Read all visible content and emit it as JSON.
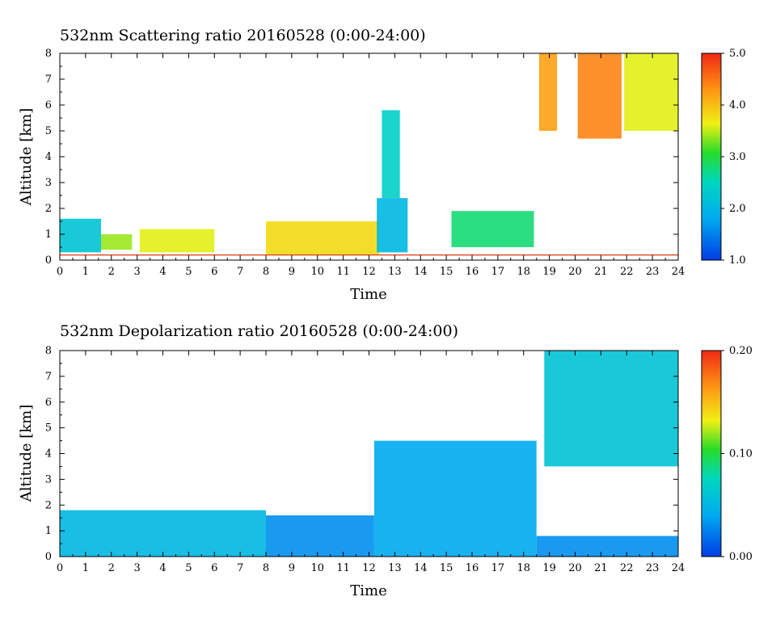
{
  "chart_data": [
    {
      "type": "heatmap",
      "title": "532nm Scattering ratio  20160528 (0:00-24:00)",
      "xlabel": "Time",
      "ylabel": "Altitude [km]",
      "xlim": [
        0,
        24
      ],
      "ylim": [
        0,
        8
      ],
      "x_ticks": [
        0,
        1,
        2,
        3,
        4,
        5,
        6,
        7,
        8,
        9,
        10,
        11,
        12,
        13,
        14,
        15,
        16,
        17,
        18,
        19,
        20,
        21,
        22,
        23,
        24
      ],
      "y_ticks": [
        0,
        1,
        2,
        3,
        4,
        5,
        6,
        7,
        8
      ],
      "colorbar": {
        "range": [
          1.0,
          5.0
        ],
        "tick_labels": [
          "1.0",
          "2.0",
          "3.0",
          "4.0",
          "5.0"
        ],
        "tick_values": [
          1.0,
          2.0,
          3.0,
          4.0,
          5.0
        ]
      },
      "reference_line_altitude": 0.2,
      "reference_line_color": "#e0502a",
      "features": [
        {
          "t0": 0.0,
          "t1": 1.6,
          "z0": 0.3,
          "z1": 1.6,
          "value": 2.2
        },
        {
          "t0": 1.6,
          "t1": 2.8,
          "z0": 0.4,
          "z1": 1.0,
          "value": 3.4
        },
        {
          "t0": 3.1,
          "t1": 6.0,
          "z0": 0.3,
          "z1": 1.2,
          "value": 3.6
        },
        {
          "t0": 8.0,
          "t1": 12.4,
          "z0": 0.2,
          "z1": 1.5,
          "value": 3.8
        },
        {
          "t0": 12.3,
          "t1": 13.5,
          "z0": 0.3,
          "z1": 2.4,
          "value": 2.0
        },
        {
          "t0": 12.5,
          "t1": 13.2,
          "z0": 2.4,
          "z1": 5.8,
          "value": 2.4
        },
        {
          "t0": 15.2,
          "t1": 18.4,
          "z0": 0.5,
          "z1": 1.9,
          "value": 2.8
        },
        {
          "t0": 18.6,
          "t1": 19.3,
          "z0": 5.0,
          "z1": 8.0,
          "value": 4.2
        },
        {
          "t0": 20.1,
          "t1": 21.8,
          "z0": 4.7,
          "z1": 8.0,
          "value": 4.4
        },
        {
          "t0": 21.9,
          "t1": 24.0,
          "z0": 5.0,
          "z1": 8.0,
          "value": 3.6
        }
      ]
    },
    {
      "type": "heatmap",
      "title": "532nm Depolarization ratio  20160528 (0:00-24:00)",
      "xlabel": "Time",
      "ylabel": "Altitude [km]",
      "xlim": [
        0,
        24
      ],
      "ylim": [
        0,
        8
      ],
      "x_ticks": [
        0,
        1,
        2,
        3,
        4,
        5,
        6,
        7,
        8,
        9,
        10,
        11,
        12,
        13,
        14,
        15,
        16,
        17,
        18,
        19,
        20,
        21,
        22,
        23,
        24
      ],
      "y_ticks": [
        0,
        1,
        2,
        3,
        4,
        5,
        6,
        7,
        8
      ],
      "colorbar": {
        "range": [
          0.0,
          0.2
        ],
        "tick_labels": [
          "0.00",
          "0.10",
          "0.20"
        ],
        "tick_values": [
          0.0,
          0.1,
          0.2
        ]
      },
      "features": [
        {
          "t0": 0.0,
          "t1": 8.0,
          "z0": 0.0,
          "z1": 1.8,
          "value": 0.05
        },
        {
          "t0": 8.0,
          "t1": 12.2,
          "z0": 0.0,
          "z1": 1.6,
          "value": 0.03
        },
        {
          "t0": 12.2,
          "t1": 18.5,
          "z0": 0.0,
          "z1": 4.5,
          "value": 0.04
        },
        {
          "t0": 18.5,
          "t1": 24.0,
          "z0": 0.0,
          "z1": 0.8,
          "value": 0.03
        },
        {
          "t0": 18.8,
          "t1": 24.0,
          "z0": 3.5,
          "z1": 8.0,
          "value": 0.06
        }
      ]
    }
  ]
}
